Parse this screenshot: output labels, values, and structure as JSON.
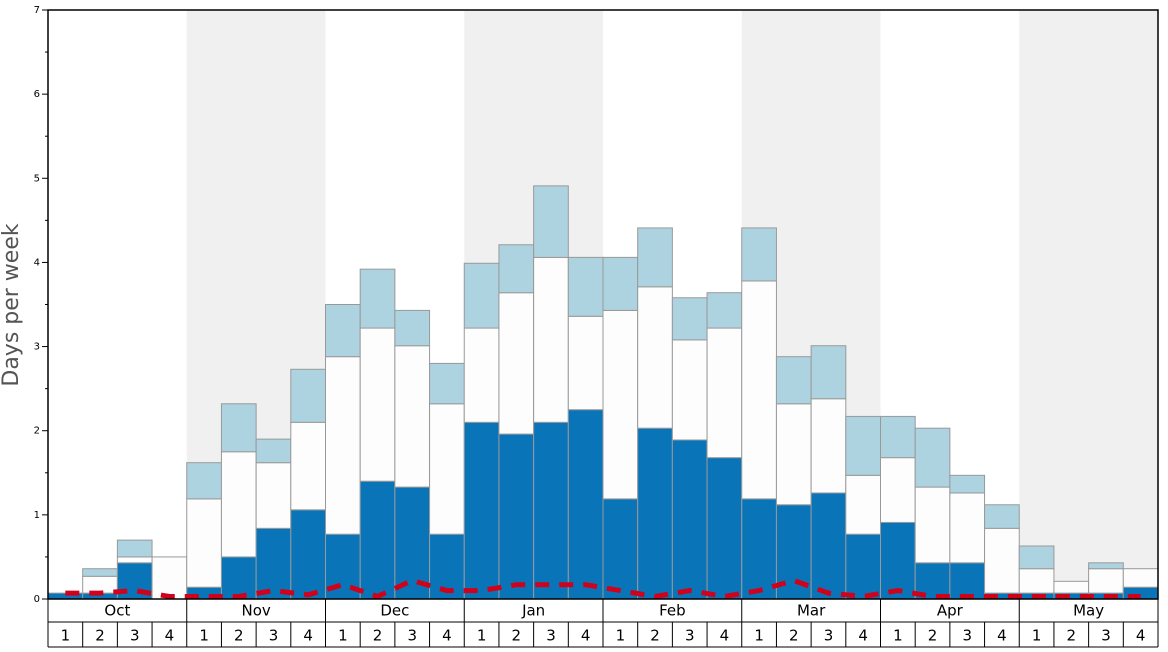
{
  "chart_data": {
    "type": "stacked-bar",
    "y_label": "Days per week",
    "months": [
      "Oct",
      "Nov",
      "Dec",
      "Jan",
      "Feb",
      "Mar",
      "Apr",
      "May"
    ],
    "categories": [
      "1",
      "2",
      "3",
      "4",
      "1",
      "2",
      "3",
      "4",
      "1",
      "2",
      "3",
      "4",
      "1",
      "2",
      "3",
      "4",
      "1",
      "2",
      "3",
      "4",
      "1",
      "2",
      "3",
      "4",
      "1",
      "2",
      "3",
      "4",
      "1",
      "2",
      "3",
      "4"
    ],
    "series": [
      {
        "color": "#0a74b8",
        "values": [
          0.07,
          0.07,
          0.43,
          0,
          0.14,
          0.5,
          0.84,
          1.06,
          0.77,
          1.4,
          1.33,
          0.77,
          2.1,
          1.96,
          2.1,
          2.25,
          1.19,
          2.03,
          1.89,
          1.68,
          1.19,
          1.12,
          1.26,
          0.77,
          0.91,
          0.43,
          0.43,
          0.07,
          0.07,
          0.07,
          0.07,
          0.14
        ]
      },
      {
        "color": "#fdfdfd",
        "values": [
          0,
          0.2,
          0.07,
          0.5,
          1.05,
          1.25,
          0.78,
          1.04,
          2.11,
          1.82,
          1.68,
          1.55,
          1.12,
          1.68,
          1.96,
          1.11,
          2.24,
          1.68,
          1.19,
          1.54,
          2.59,
          1.2,
          1.12,
          0.7,
          0.77,
          0.9,
          0.83,
          0.77,
          0.29,
          0.14,
          0.29,
          0.22
        ]
      },
      {
        "color": "#aed3e0",
        "values": [
          0,
          0.09,
          0.2,
          0,
          0.43,
          0.57,
          0.28,
          0.63,
          0.62,
          0.7,
          0.42,
          0.48,
          0.77,
          0.57,
          0.85,
          0.7,
          0.63,
          0.7,
          0.5,
          0.42,
          0.63,
          0.56,
          0.63,
          0.7,
          0.49,
          0.7,
          0.21,
          0.28,
          0.27,
          0,
          0.07,
          0
        ]
      }
    ],
    "lines": [
      {
        "color": "#d0021b",
        "values": [
          0.07,
          0.07,
          0.1,
          0.03,
          0.03,
          0.03,
          0.1,
          0.05,
          0.17,
          0.03,
          0.22,
          0.1,
          0.1,
          0.17,
          0.17,
          0.17,
          0.1,
          0.03,
          0.1,
          0.03,
          0.1,
          0.22,
          0.07,
          0.03,
          0.1,
          0.03,
          0.03,
          0.03,
          0.03,
          0.03,
          0.03,
          0.03
        ]
      }
    ],
    "ylim": [
      0,
      7
    ],
    "yticks": [
      0,
      1,
      2,
      3,
      4,
      5,
      6,
      7
    ],
    "yminorticks": [
      0.5,
      1.5,
      2.5,
      3.5,
      4.5,
      5.5,
      6.5
    ],
    "shade_color": "#f0f0f0"
  }
}
